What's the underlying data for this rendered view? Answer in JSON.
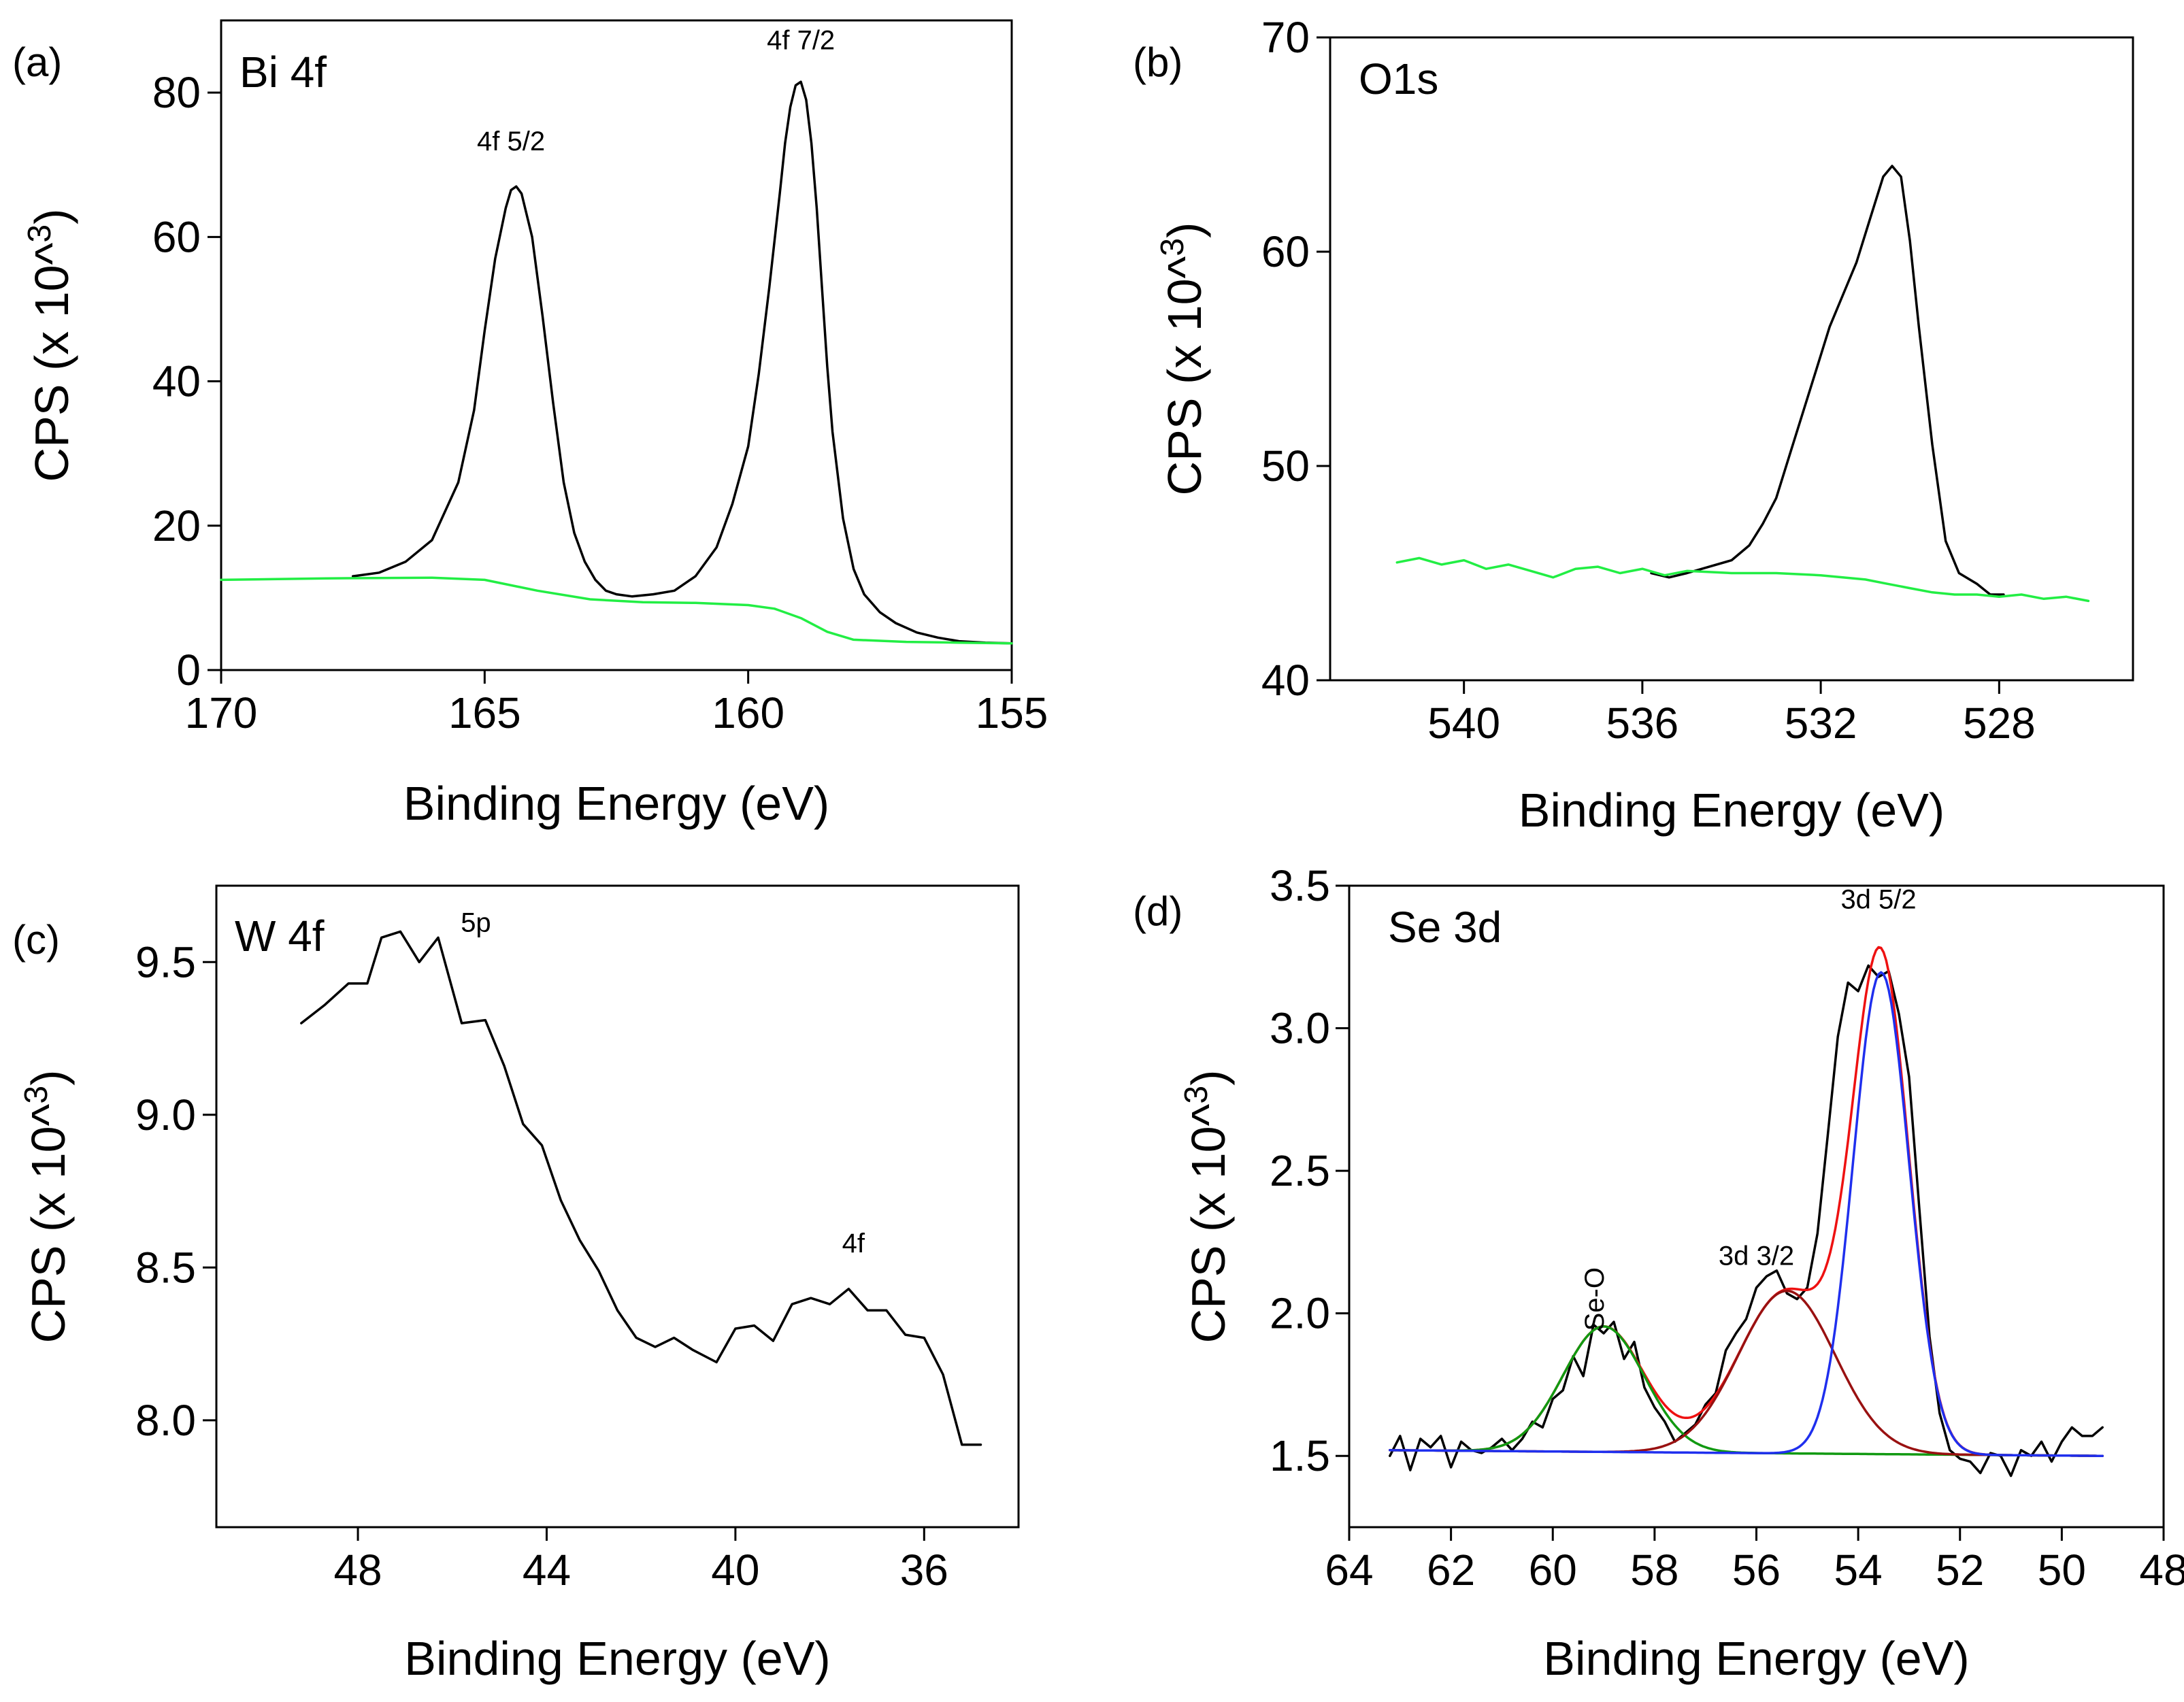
{
  "figure": {
    "panels": [
      {
        "id": "a",
        "tag": "(a)",
        "label": "Bi 4f"
      },
      {
        "id": "b",
        "tag": "(b)",
        "label": "O1s"
      },
      {
        "id": "c",
        "tag": "(c)",
        "label": "W 4f"
      },
      {
        "id": "d",
        "tag": "(d)",
        "label": "Se 3d"
      }
    ]
  },
  "chart_data": [
    {
      "panel": "(a)",
      "type": "line",
      "title": "Bi 4f",
      "xlabel": "Binding Energy (eV)",
      "ylabel": "CPS (x 10^3)",
      "xlim": [
        170,
        155
      ],
      "ylim": [
        0,
        90
      ],
      "xticks": [
        170,
        165,
        160,
        155
      ],
      "yticks": [
        0,
        20,
        40,
        60,
        80
      ],
      "annotations": [
        {
          "text": "4f 5/2",
          "x": 164.5,
          "y": 72
        },
        {
          "text": "4f 7/2",
          "x": 159.0,
          "y": 86
        }
      ],
      "series": [
        {
          "name": "spectrum",
          "color": "#000000",
          "x": [
            167.5,
            167,
            166.5,
            166,
            165.5,
            165.2,
            165,
            164.8,
            164.6,
            164.5,
            164.4,
            164.3,
            164.1,
            163.9,
            163.7,
            163.5,
            163.3,
            163.1,
            162.9,
            162.7,
            162.5,
            162.2,
            161.8,
            161.4,
            161,
            160.6,
            160.3,
            160,
            159.8,
            159.6,
            159.4,
            159.3,
            159.2,
            159.1,
            159,
            158.9,
            158.8,
            158.7,
            158.6,
            158.5,
            158.4,
            158.2,
            158,
            157.8,
            157.5,
            157.2,
            156.8,
            156.4,
            156,
            155.5,
            155
          ],
          "y": [
            13,
            13.5,
            15,
            18,
            26,
            36,
            47,
            57,
            64,
            66.5,
            67,
            66,
            60,
            49,
            37,
            26,
            19,
            15,
            12.5,
            11,
            10.5,
            10.2,
            10.5,
            11,
            13,
            17,
            23,
            31,
            41,
            53,
            66,
            73,
            78,
            81,
            81.5,
            79,
            73,
            64,
            53,
            42,
            33,
            21,
            14,
            10.5,
            8,
            6.5,
            5.2,
            4.5,
            4,
            3.8,
            3.7
          ]
        },
        {
          "name": "background",
          "color": "#22ee44",
          "x": [
            170,
            168,
            166,
            165,
            164,
            163,
            162,
            161,
            160,
            159.5,
            159,
            158.5,
            158,
            157,
            156,
            155
          ],
          "y": [
            12.5,
            12.7,
            12.8,
            12.5,
            11,
            9.8,
            9.4,
            9.3,
            9.0,
            8.5,
            7.2,
            5.3,
            4.2,
            3.9,
            3.8,
            3.7
          ]
        }
      ]
    },
    {
      "panel": "(b)",
      "type": "line",
      "title": "O1s",
      "xlabel": "Binding Energy (eV)",
      "ylabel": "CPS (x 10^3)",
      "xlim": [
        543,
        525
      ],
      "ylim": [
        40,
        70
      ],
      "xticks": [
        540,
        536,
        532,
        528
      ],
      "yticks": [
        40,
        50,
        60,
        70
      ],
      "annotations": [],
      "series": [
        {
          "name": "spectrum",
          "color": "#000000",
          "x": [
            535.8,
            535.4,
            535,
            534.5,
            534,
            533.6,
            533.3,
            533,
            532.7,
            532.4,
            532.1,
            531.8,
            531.5,
            531.2,
            530.9,
            530.6,
            530.4,
            530.2,
            530,
            529.8,
            529.5,
            529.2,
            528.9,
            528.5,
            528.2,
            527.9
          ],
          "y": [
            45,
            44.8,
            45,
            45.3,
            45.6,
            46.3,
            47.3,
            48.5,
            50.5,
            52.5,
            54.5,
            56.5,
            58,
            59.5,
            61.5,
            63.5,
            64,
            63.5,
            60.5,
            56.5,
            51,
            46.5,
            45,
            44.5,
            44,
            44
          ]
        },
        {
          "name": "background",
          "color": "#22ee44",
          "x": [
            541.5,
            541,
            540.5,
            540,
            539.5,
            539,
            538.5,
            538,
            537.5,
            537,
            536.5,
            536,
            535.5,
            535,
            534,
            533,
            532,
            531,
            530.5,
            530,
            529.5,
            529,
            528.5,
            528,
            527.5,
            527,
            526.5,
            526
          ],
          "y": [
            45.5,
            45.7,
            45.4,
            45.6,
            45.2,
            45.4,
            45.1,
            44.8,
            45.2,
            45.3,
            45.0,
            45.2,
            44.9,
            45.1,
            45.0,
            45.0,
            44.9,
            44.7,
            44.5,
            44.3,
            44.1,
            44.0,
            44.0,
            43.9,
            44.0,
            43.8,
            43.9,
            43.7
          ]
        }
      ]
    },
    {
      "panel": "(c)",
      "type": "line",
      "title": "W 4f",
      "xlabel": "Binding Energy (eV)",
      "ylabel": "CPS (x 10^3)",
      "xlim": [
        51,
        34
      ],
      "ylim": [
        7.65,
        9.75
      ],
      "xticks": [
        48,
        44,
        40,
        36
      ],
      "yticks": [
        8.0,
        8.5,
        9.0,
        9.5
      ],
      "annotations": [
        {
          "text": "5p",
          "x": 45.5,
          "y": 9.6
        },
        {
          "text": "4f",
          "x": 37.5,
          "y": 8.55
        }
      ],
      "series": [
        {
          "name": "spectrum",
          "color": "#000000",
          "x": [
            49.2,
            48.7,
            48.2,
            47.8,
            47.5,
            47.1,
            46.7,
            46.3,
            45.8,
            45.3,
            44.9,
            44.5,
            44.1,
            43.7,
            43.3,
            42.9,
            42.5,
            42.1,
            41.7,
            41.3,
            40.9,
            40.4,
            40,
            39.6,
            39.2,
            38.8,
            38.4,
            38,
            37.6,
            37.2,
            36.8,
            36.4,
            36,
            35.6,
            35.2,
            34.8
          ],
          "y": [
            9.3,
            9.36,
            9.43,
            9.43,
            9.58,
            9.6,
            9.5,
            9.58,
            9.3,
            9.31,
            9.16,
            8.97,
            8.9,
            8.72,
            8.59,
            8.49,
            8.36,
            8.27,
            8.24,
            8.27,
            8.23,
            8.19,
            8.3,
            8.31,
            8.26,
            8.38,
            8.4,
            8.38,
            8.43,
            8.36,
            8.36,
            8.28,
            8.27,
            8.15,
            7.92,
            7.92
          ]
        }
      ]
    },
    {
      "panel": "(d)",
      "type": "line",
      "title": "Se 3d",
      "xlabel": "Binding Energy (eV)",
      "ylabel": "CPS (x 10^3)",
      "xlim": [
        64,
        48
      ],
      "ylim": [
        1.25,
        3.5
      ],
      "xticks": [
        64,
        62,
        60,
        58,
        56,
        54,
        52,
        50,
        48
      ],
      "yticks": [
        1.5,
        2.0,
        2.5,
        3.0,
        3.5
      ],
      "annotations": [
        {
          "text": "Se-O",
          "x": 59.0,
          "y": 2.05
        },
        {
          "text": "3d 3/2",
          "x": 56.0,
          "y": 2.17
        },
        {
          "text": "3d 5/2",
          "x": 53.6,
          "y": 3.42
        }
      ],
      "series": [
        {
          "name": "raw",
          "color": "#000000",
          "x": [
            63.2,
            63.0,
            62.8,
            62.6,
            62.4,
            62.2,
            62.0,
            61.8,
            61.6,
            61.4,
            61.2,
            61.0,
            60.8,
            60.6,
            60.4,
            60.2,
            60.0,
            59.8,
            59.6,
            59.4,
            59.2,
            59.0,
            58.8,
            58.6,
            58.4,
            58.2,
            58.0,
            57.8,
            57.6,
            57.4,
            57.2,
            57.0,
            56.8,
            56.6,
            56.4,
            56.2,
            56.0,
            55.8,
            55.6,
            55.4,
            55.2,
            55.0,
            54.8,
            54.6,
            54.4,
            54.2,
            54.0,
            53.8,
            53.6,
            53.4,
            53.2,
            53.0,
            52.8,
            52.6,
            52.4,
            52.2,
            52.0,
            51.8,
            51.6,
            51.4,
            51.2,
            51.0,
            50.8,
            50.6,
            50.4,
            50.2,
            50.0,
            49.8,
            49.6,
            49.4,
            49.2
          ],
          "y": [
            1.5,
            1.57,
            1.45,
            1.56,
            1.53,
            1.57,
            1.46,
            1.55,
            1.52,
            1.51,
            1.53,
            1.56,
            1.52,
            1.56,
            1.62,
            1.6,
            1.7,
            1.73,
            1.85,
            1.78,
            1.96,
            1.93,
            1.97,
            1.84,
            1.9,
            1.74,
            1.67,
            1.62,
            1.55,
            1.58,
            1.61,
            1.68,
            1.72,
            1.87,
            1.93,
            1.98,
            2.09,
            2.13,
            2.15,
            2.07,
            2.05,
            2.09,
            2.28,
            2.62,
            2.97,
            3.16,
            3.13,
            3.22,
            3.18,
            3.2,
            3.05,
            2.83,
            2.37,
            1.92,
            1.65,
            1.52,
            1.49,
            1.48,
            1.44,
            1.51,
            1.5,
            1.43,
            1.52,
            1.5,
            1.55,
            1.48,
            1.55,
            1.6,
            1.57,
            1.57,
            1.6
          ]
        },
        {
          "name": "envelope",
          "color": "#ee1111",
          "peaks": [
            {
              "center": 59.0,
              "height": 0.44,
              "sigma": 0.8
            },
            {
              "center": 55.4,
              "height": 0.57,
              "sigma": 0.95
            },
            {
              "center": 53.55,
              "height": 1.69,
              "sigma": 0.55
            }
          ],
          "baseline": {
            "x0": 63.2,
            "y0": 1.52,
            "x1": 49.2,
            "y1": 1.5
          }
        },
        {
          "name": "Se-O component",
          "color": "#119911",
          "peaks": [
            {
              "center": 59.0,
              "height": 0.44,
              "sigma": 0.8
            }
          ],
          "baseline": {
            "x0": 63.2,
            "y0": 1.52,
            "x1": 49.2,
            "y1": 1.5
          }
        },
        {
          "name": "3d 3/2 component",
          "color": "#991111",
          "peaks": [
            {
              "center": 55.4,
              "height": 0.57,
              "sigma": 0.95
            }
          ],
          "baseline": {
            "x0": 63.2,
            "y0": 1.52,
            "x1": 49.2,
            "y1": 1.5
          }
        },
        {
          "name": "3d 5/2 component",
          "color": "#1f2fee",
          "peaks": [
            {
              "center": 53.55,
              "height": 1.69,
              "sigma": 0.55
            }
          ],
          "baseline": {
            "x0": 63.2,
            "y0": 1.52,
            "x1": 49.2,
            "y1": 1.5
          }
        }
      ]
    }
  ]
}
